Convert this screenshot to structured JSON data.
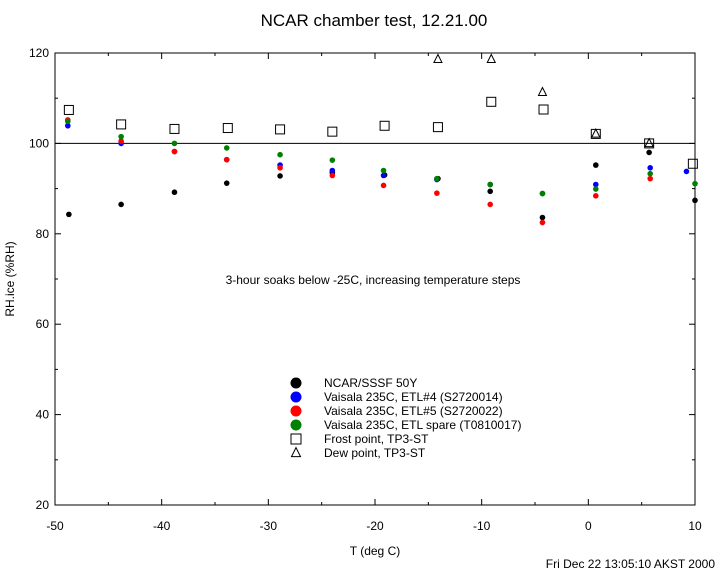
{
  "chart_data": {
    "type": "scatter",
    "title": "NCAR chamber test,  12.21.00",
    "xlabel": "T (deg C)",
    "ylabel": "RH.ice (%RH)",
    "xlim": [
      -50,
      10
    ],
    "ylim": [
      20,
      120
    ],
    "xticks": [
      "-50",
      "-40",
      "-30",
      "-20",
      "-10",
      "0",
      "10"
    ],
    "yticks": [
      "20",
      "40",
      "60",
      "80",
      "100",
      "120"
    ],
    "reference_line": 100,
    "annotation": "3-hour soaks below -25C, increasing temperature steps",
    "footer": "Fri Dec 22 13:05:10 AKST 2000",
    "legend_position": "lower-center",
    "series": [
      {
        "name": "NCAR/SSSF 50Y",
        "marker": "dot",
        "color": "#000000",
        "points": [
          [
            -48.7,
            84.3
          ],
          [
            -43.8,
            86.5
          ],
          [
            -38.8,
            89.2
          ],
          [
            -33.9,
            91.2
          ],
          [
            -28.9,
            92.8
          ],
          [
            -24.0,
            93.5
          ],
          [
            -19.1,
            93.0
          ],
          [
            -14.1,
            92.2
          ],
          [
            -9.2,
            89.4
          ],
          [
            -4.3,
            83.6
          ],
          [
            0.7,
            95.2
          ],
          [
            5.7,
            98.0
          ],
          [
            10.0,
            87.4
          ]
        ]
      },
      {
        "name": "Vaisala 235C, ETL#4 (S2720014)",
        "marker": "dot",
        "color": "#0000ff",
        "points": [
          [
            -48.8,
            103.9
          ],
          [
            -43.8,
            100.0
          ],
          [
            -38.8,
            98.2
          ],
          [
            -33.9,
            96.4
          ],
          [
            -28.9,
            95.2
          ],
          [
            -24.0,
            94.0
          ],
          [
            -19.2,
            92.9
          ],
          [
            -14.2,
            92.0
          ],
          [
            -9.2,
            90.9
          ],
          [
            -4.3,
            88.9
          ],
          [
            0.7,
            90.9
          ],
          [
            5.8,
            94.6
          ],
          [
            9.2,
            93.8
          ]
        ]
      },
      {
        "name": "Vaisala 235C, ETL#5 (S2720022)",
        "marker": "dot",
        "color": "#ff0000",
        "points": [
          [
            -48.8,
            105.2
          ],
          [
            -43.8,
            100.5
          ],
          [
            -38.8,
            98.2
          ],
          [
            -33.9,
            96.4
          ],
          [
            -28.9,
            94.6
          ],
          [
            -24.0,
            92.9
          ],
          [
            -19.2,
            90.7
          ],
          [
            -14.2,
            89.0
          ],
          [
            -9.2,
            86.5
          ],
          [
            -4.3,
            82.5
          ],
          [
            0.7,
            88.4
          ],
          [
            5.8,
            92.2
          ]
        ]
      },
      {
        "name": "Vaisala 235C, ETL spare (T0810017)",
        "marker": "dot",
        "color": "#008000",
        "points": [
          [
            -48.8,
            104.9
          ],
          [
            -43.8,
            101.5
          ],
          [
            -38.8,
            100.0
          ],
          [
            -33.9,
            99.0
          ],
          [
            -28.9,
            97.5
          ],
          [
            -24.0,
            96.3
          ],
          [
            -19.2,
            94.0
          ],
          [
            -14.2,
            92.2
          ],
          [
            -9.2,
            90.9
          ],
          [
            -4.3,
            88.9
          ],
          [
            0.7,
            89.9
          ],
          [
            5.8,
            93.3
          ],
          [
            10.0,
            91.1
          ]
        ]
      },
      {
        "name": "Frost point, TP3-ST",
        "marker": "square",
        "color": "#000000",
        "points": [
          [
            -48.7,
            107.4
          ],
          [
            -43.8,
            104.2
          ],
          [
            -38.8,
            103.2
          ],
          [
            -33.8,
            103.4
          ],
          [
            -28.9,
            103.1
          ],
          [
            -24.0,
            102.6
          ],
          [
            -19.1,
            103.9
          ],
          [
            -14.1,
            103.6
          ],
          [
            -9.1,
            109.2
          ],
          [
            -4.2,
            107.5
          ],
          [
            0.7,
            102.1
          ],
          [
            5.7,
            100.0
          ],
          [
            9.8,
            95.5
          ]
        ]
      },
      {
        "name": "Dew point, TP3-ST",
        "marker": "triangle",
        "color": "#000000",
        "points": [
          [
            -14.1,
            118.6
          ],
          [
            -9.1,
            118.6
          ],
          [
            -4.3,
            111.3
          ],
          [
            0.7,
            102.1
          ],
          [
            5.7,
            100.0
          ]
        ]
      }
    ]
  }
}
